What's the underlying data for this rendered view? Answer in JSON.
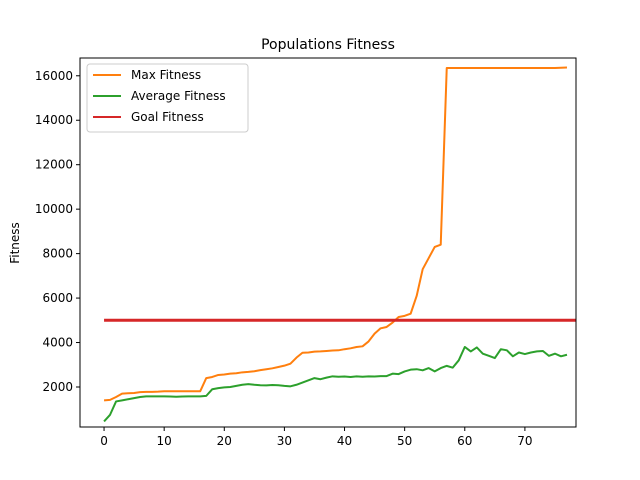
{
  "chart_data": {
    "type": "line",
    "title": "Populations Fitness",
    "xlabel": "",
    "ylabel": "Fitness",
    "xlim": [
      -4,
      78.5
    ],
    "ylim": [
      200,
      16800
    ],
    "xticks": [
      0,
      10,
      20,
      30,
      40,
      50,
      60,
      70
    ],
    "yticks": [
      2000,
      4000,
      6000,
      8000,
      10000,
      12000,
      14000,
      16000
    ],
    "legend_position": "top-left",
    "series": [
      {
        "name": "Max Fitness",
        "color": "#ff7f0e",
        "x": [
          0,
          1,
          2,
          3,
          4,
          5,
          6,
          7,
          8,
          9,
          10,
          11,
          12,
          13,
          14,
          15,
          16,
          17,
          18,
          19,
          20,
          21,
          22,
          23,
          24,
          25,
          26,
          27,
          28,
          29,
          30,
          31,
          32,
          33,
          34,
          35,
          36,
          37,
          38,
          39,
          40,
          41,
          42,
          43,
          44,
          45,
          46,
          47,
          48,
          49,
          50,
          51,
          52,
          53,
          54,
          55,
          56,
          57,
          58,
          59,
          60,
          61,
          62,
          63,
          64,
          65,
          66,
          67,
          68,
          69,
          70,
          71,
          72,
          73,
          74,
          75,
          76,
          77
        ],
        "values": [
          1400,
          1420,
          1550,
          1700,
          1720,
          1730,
          1770,
          1780,
          1780,
          1790,
          1810,
          1810,
          1810,
          1810,
          1810,
          1810,
          1810,
          2400,
          2450,
          2540,
          2560,
          2600,
          2620,
          2660,
          2680,
          2710,
          2760,
          2800,
          2840,
          2900,
          2960,
          3050,
          3320,
          3540,
          3550,
          3590,
          3600,
          3620,
          3640,
          3650,
          3700,
          3740,
          3800,
          3830,
          4050,
          4400,
          4640,
          4700,
          4900,
          5150,
          5200,
          5300,
          6100,
          7300,
          7800,
          8300,
          8400,
          16350,
          16350,
          16350,
          16350,
          16350,
          16350,
          16350,
          16350,
          16350,
          16350,
          16350,
          16350,
          16350,
          16350,
          16350,
          16350,
          16350,
          16350,
          16350,
          16360,
          16370
        ]
      },
      {
        "name": "Average Fitness",
        "color": "#2ca02c",
        "x": [
          0,
          1,
          2,
          3,
          4,
          5,
          6,
          7,
          8,
          9,
          10,
          11,
          12,
          13,
          14,
          15,
          16,
          17,
          18,
          19,
          20,
          21,
          22,
          23,
          24,
          25,
          26,
          27,
          28,
          29,
          30,
          31,
          32,
          33,
          34,
          35,
          36,
          37,
          38,
          39,
          40,
          41,
          42,
          43,
          44,
          45,
          46,
          47,
          48,
          49,
          50,
          51,
          52,
          53,
          54,
          55,
          56,
          57,
          58,
          59,
          60,
          61,
          62,
          63,
          64,
          65,
          66,
          67,
          68,
          69,
          70,
          71,
          72,
          73,
          74,
          75,
          76,
          77
        ],
        "values": [
          450,
          750,
          1350,
          1400,
          1450,
          1500,
          1550,
          1580,
          1580,
          1580,
          1580,
          1570,
          1560,
          1570,
          1580,
          1580,
          1580,
          1600,
          1900,
          1950,
          1980,
          2000,
          2050,
          2100,
          2130,
          2100,
          2080,
          2070,
          2090,
          2080,
          2050,
          2030,
          2100,
          2200,
          2300,
          2400,
          2350,
          2420,
          2480,
          2460,
          2470,
          2450,
          2480,
          2460,
          2480,
          2470,
          2490,
          2490,
          2600,
          2580,
          2700,
          2780,
          2800,
          2750,
          2850,
          2700,
          2850,
          2950,
          2870,
          3200,
          3800,
          3600,
          3780,
          3500,
          3400,
          3300,
          3700,
          3650,
          3380,
          3550,
          3480,
          3550,
          3600,
          3620,
          3400,
          3500,
          3380,
          3450
        ]
      },
      {
        "name": "Goal Fitness",
        "color": "#d62728",
        "x": [
          0,
          78.5
        ],
        "values": [
          5000,
          5000
        ]
      }
    ]
  }
}
